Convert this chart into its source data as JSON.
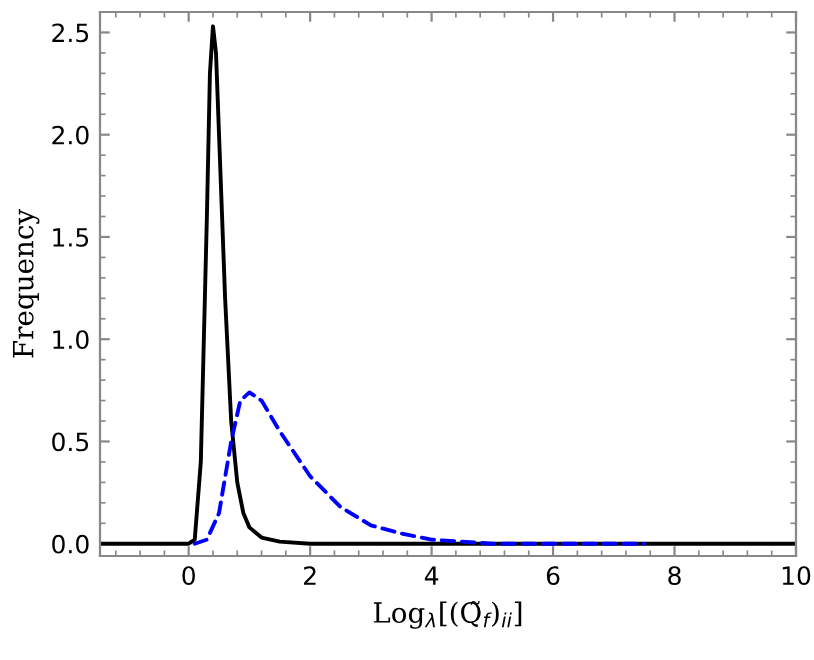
{
  "chart_data": {
    "type": "line",
    "xlabel": "Log$_{λ}$[(Q̃$_{f}$)$_{ii}$]",
    "ylabel": "Frequency",
    "xlim": [
      -1.46,
      10
    ],
    "ylim": [
      -0.06,
      2.6
    ],
    "xticks": [
      0,
      2,
      4,
      6,
      8,
      10
    ],
    "yticks": [
      {
        "value": 0,
        "label": "0.0"
      },
      {
        "value": 0.5,
        "label": "0.5"
      },
      {
        "value": 1,
        "label": "1.0"
      },
      {
        "value": 1.5,
        "label": "1.5"
      },
      {
        "value": 2,
        "label": "2.0"
      },
      {
        "value": 2.5,
        "label": "2.5"
      }
    ],
    "grid": false,
    "legend": false,
    "series": [
      {
        "color": "#0000ff",
        "line_style": "dashed",
        "x": [
          0.1,
          0.3,
          0.5,
          0.7,
          0.85,
          1.0,
          1.2,
          1.5,
          2.0,
          2.5,
          3.0,
          3.5,
          4.0,
          4.5,
          5.0,
          7.5
        ],
        "values": [
          0,
          0.02,
          0.15,
          0.5,
          0.7,
          0.74,
          0.7,
          0.55,
          0.33,
          0.18,
          0.09,
          0.05,
          0.02,
          0.01,
          0,
          0
        ]
      },
      {
        "color": "#000000",
        "line_style": "solid",
        "x": [
          -1.46,
          0.0,
          0.1,
          0.2,
          0.3,
          0.35,
          0.4,
          0.45,
          0.5,
          0.6,
          0.7,
          0.8,
          0.9,
          1.0,
          1.2,
          1.5,
          2.0,
          10
        ],
        "values": [
          0,
          0,
          0.02,
          0.4,
          1.6,
          2.3,
          2.53,
          2.4,
          2.0,
          1.2,
          0.6,
          0.3,
          0.15,
          0.08,
          0.03,
          0.01,
          0,
          0
        ]
      }
    ]
  }
}
